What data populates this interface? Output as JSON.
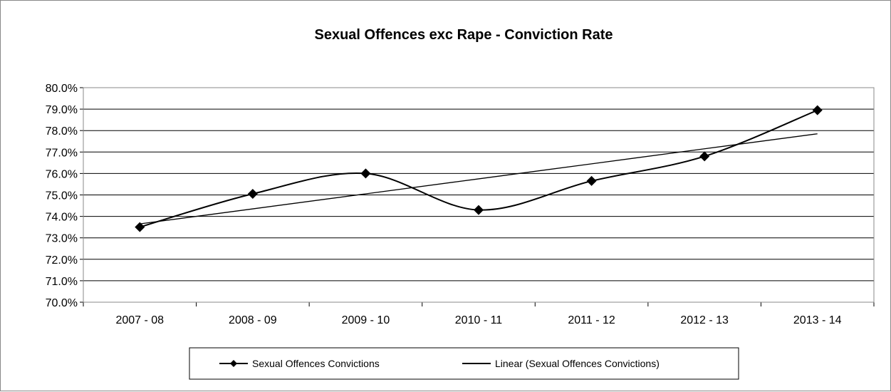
{
  "chart_data": {
    "type": "line",
    "title": "Sexual Offences exc Rape - Conviction Rate",
    "xlabel": "",
    "ylabel": "",
    "categories": [
      "2007 - 08",
      "2008 - 09",
      "2009 - 10",
      "2010 - 11",
      "2011 - 12",
      "2012 - 13",
      "2013 - 14"
    ],
    "series": [
      {
        "name": "Sexual Offences Convictions",
        "values": [
          73.5,
          75.05,
          76.0,
          74.3,
          75.65,
          76.8,
          78.95
        ],
        "marker": "diamond",
        "smooth": true,
        "color": "#000000"
      },
      {
        "name": "Linear (Sexual Offences Convictions)",
        "values": [
          73.65,
          74.35,
          75.05,
          75.75,
          76.45,
          77.15,
          77.85
        ],
        "marker": "none",
        "smooth": false,
        "color": "#000000"
      }
    ],
    "ylim": [
      70,
      80
    ],
    "yticks": [
      "70.0%",
      "71.0%",
      "72.0%",
      "73.0%",
      "74.0%",
      "75.0%",
      "76.0%",
      "77.0%",
      "78.0%",
      "79.0%",
      "80.0%"
    ],
    "grid": true,
    "legend_position": "bottom"
  }
}
